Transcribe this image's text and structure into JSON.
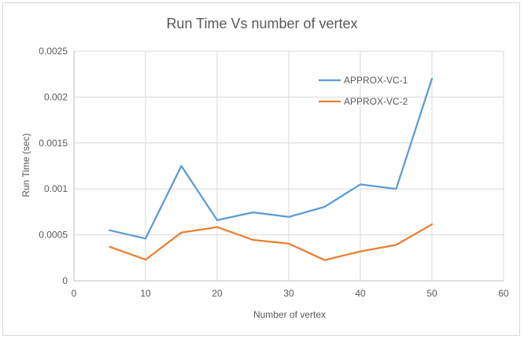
{
  "chart_data": {
    "type": "line",
    "title": "Run Time Vs number of vertex",
    "xlabel": "Number of vertex",
    "ylabel": "Run Time (sec)",
    "xlim": [
      0,
      60
    ],
    "ylim": [
      0,
      0.0025
    ],
    "x_ticks": [
      0,
      10,
      20,
      30,
      40,
      50,
      60
    ],
    "x_tick_labels": [
      "0",
      "10",
      "20",
      "30",
      "40",
      "50",
      "60"
    ],
    "y_ticks": [
      0,
      0.0005,
      0.001,
      0.0015,
      0.002,
      0.0025
    ],
    "y_tick_labels": [
      "0",
      "0.0005",
      "0.001",
      "0.0015",
      "0.002",
      "0.0025"
    ],
    "grid": true,
    "legend_position": "top-right",
    "x": [
      5,
      10,
      15,
      20,
      25,
      30,
      35,
      40,
      45,
      50
    ],
    "series": [
      {
        "name": "APPROX-VC-1",
        "color": "#5b9bd5",
        "values": [
          0.00055,
          0.00046,
          0.00125,
          0.00066,
          0.000745,
          0.000695,
          0.000805,
          0.00105,
          0.001,
          0.0022
        ]
      },
      {
        "name": "APPROX-VC-2",
        "color": "#ed7d31",
        "values": [
          0.00037,
          0.00023,
          0.000525,
          0.000585,
          0.000445,
          0.000405,
          0.000225,
          0.00032,
          0.00039,
          0.000615
        ]
      }
    ]
  }
}
